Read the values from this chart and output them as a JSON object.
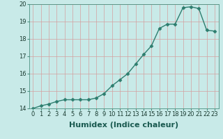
{
  "x": [
    0,
    1,
    2,
    3,
    4,
    5,
    6,
    7,
    8,
    9,
    10,
    11,
    12,
    13,
    14,
    15,
    16,
    17,
    18,
    19,
    20,
    21,
    22,
    23
  ],
  "y": [
    14.0,
    14.15,
    14.25,
    14.4,
    14.5,
    14.5,
    14.5,
    14.5,
    14.6,
    14.85,
    15.3,
    15.65,
    16.0,
    16.55,
    17.1,
    17.6,
    18.6,
    18.85,
    18.85,
    19.8,
    19.85,
    19.75,
    18.5,
    18.45
  ],
  "xlabel": "Humidex (Indice chaleur)",
  "ylim": [
    14,
    20
  ],
  "xlim": [
    -0.5,
    23.5
  ],
  "yticks": [
    14,
    15,
    16,
    17,
    18,
    19,
    20
  ],
  "xticks": [
    0,
    1,
    2,
    3,
    4,
    5,
    6,
    7,
    8,
    9,
    10,
    11,
    12,
    13,
    14,
    15,
    16,
    17,
    18,
    19,
    20,
    21,
    22,
    23
  ],
  "line_color": "#2d7d6e",
  "marker_color": "#2d7d6e",
  "bg_color": "#c8eae8",
  "grid_color": "#d4a0a0",
  "xlabel_fontsize": 8,
  "tick_fontsize": 6,
  "line_width": 1.0,
  "marker_size": 2.5
}
